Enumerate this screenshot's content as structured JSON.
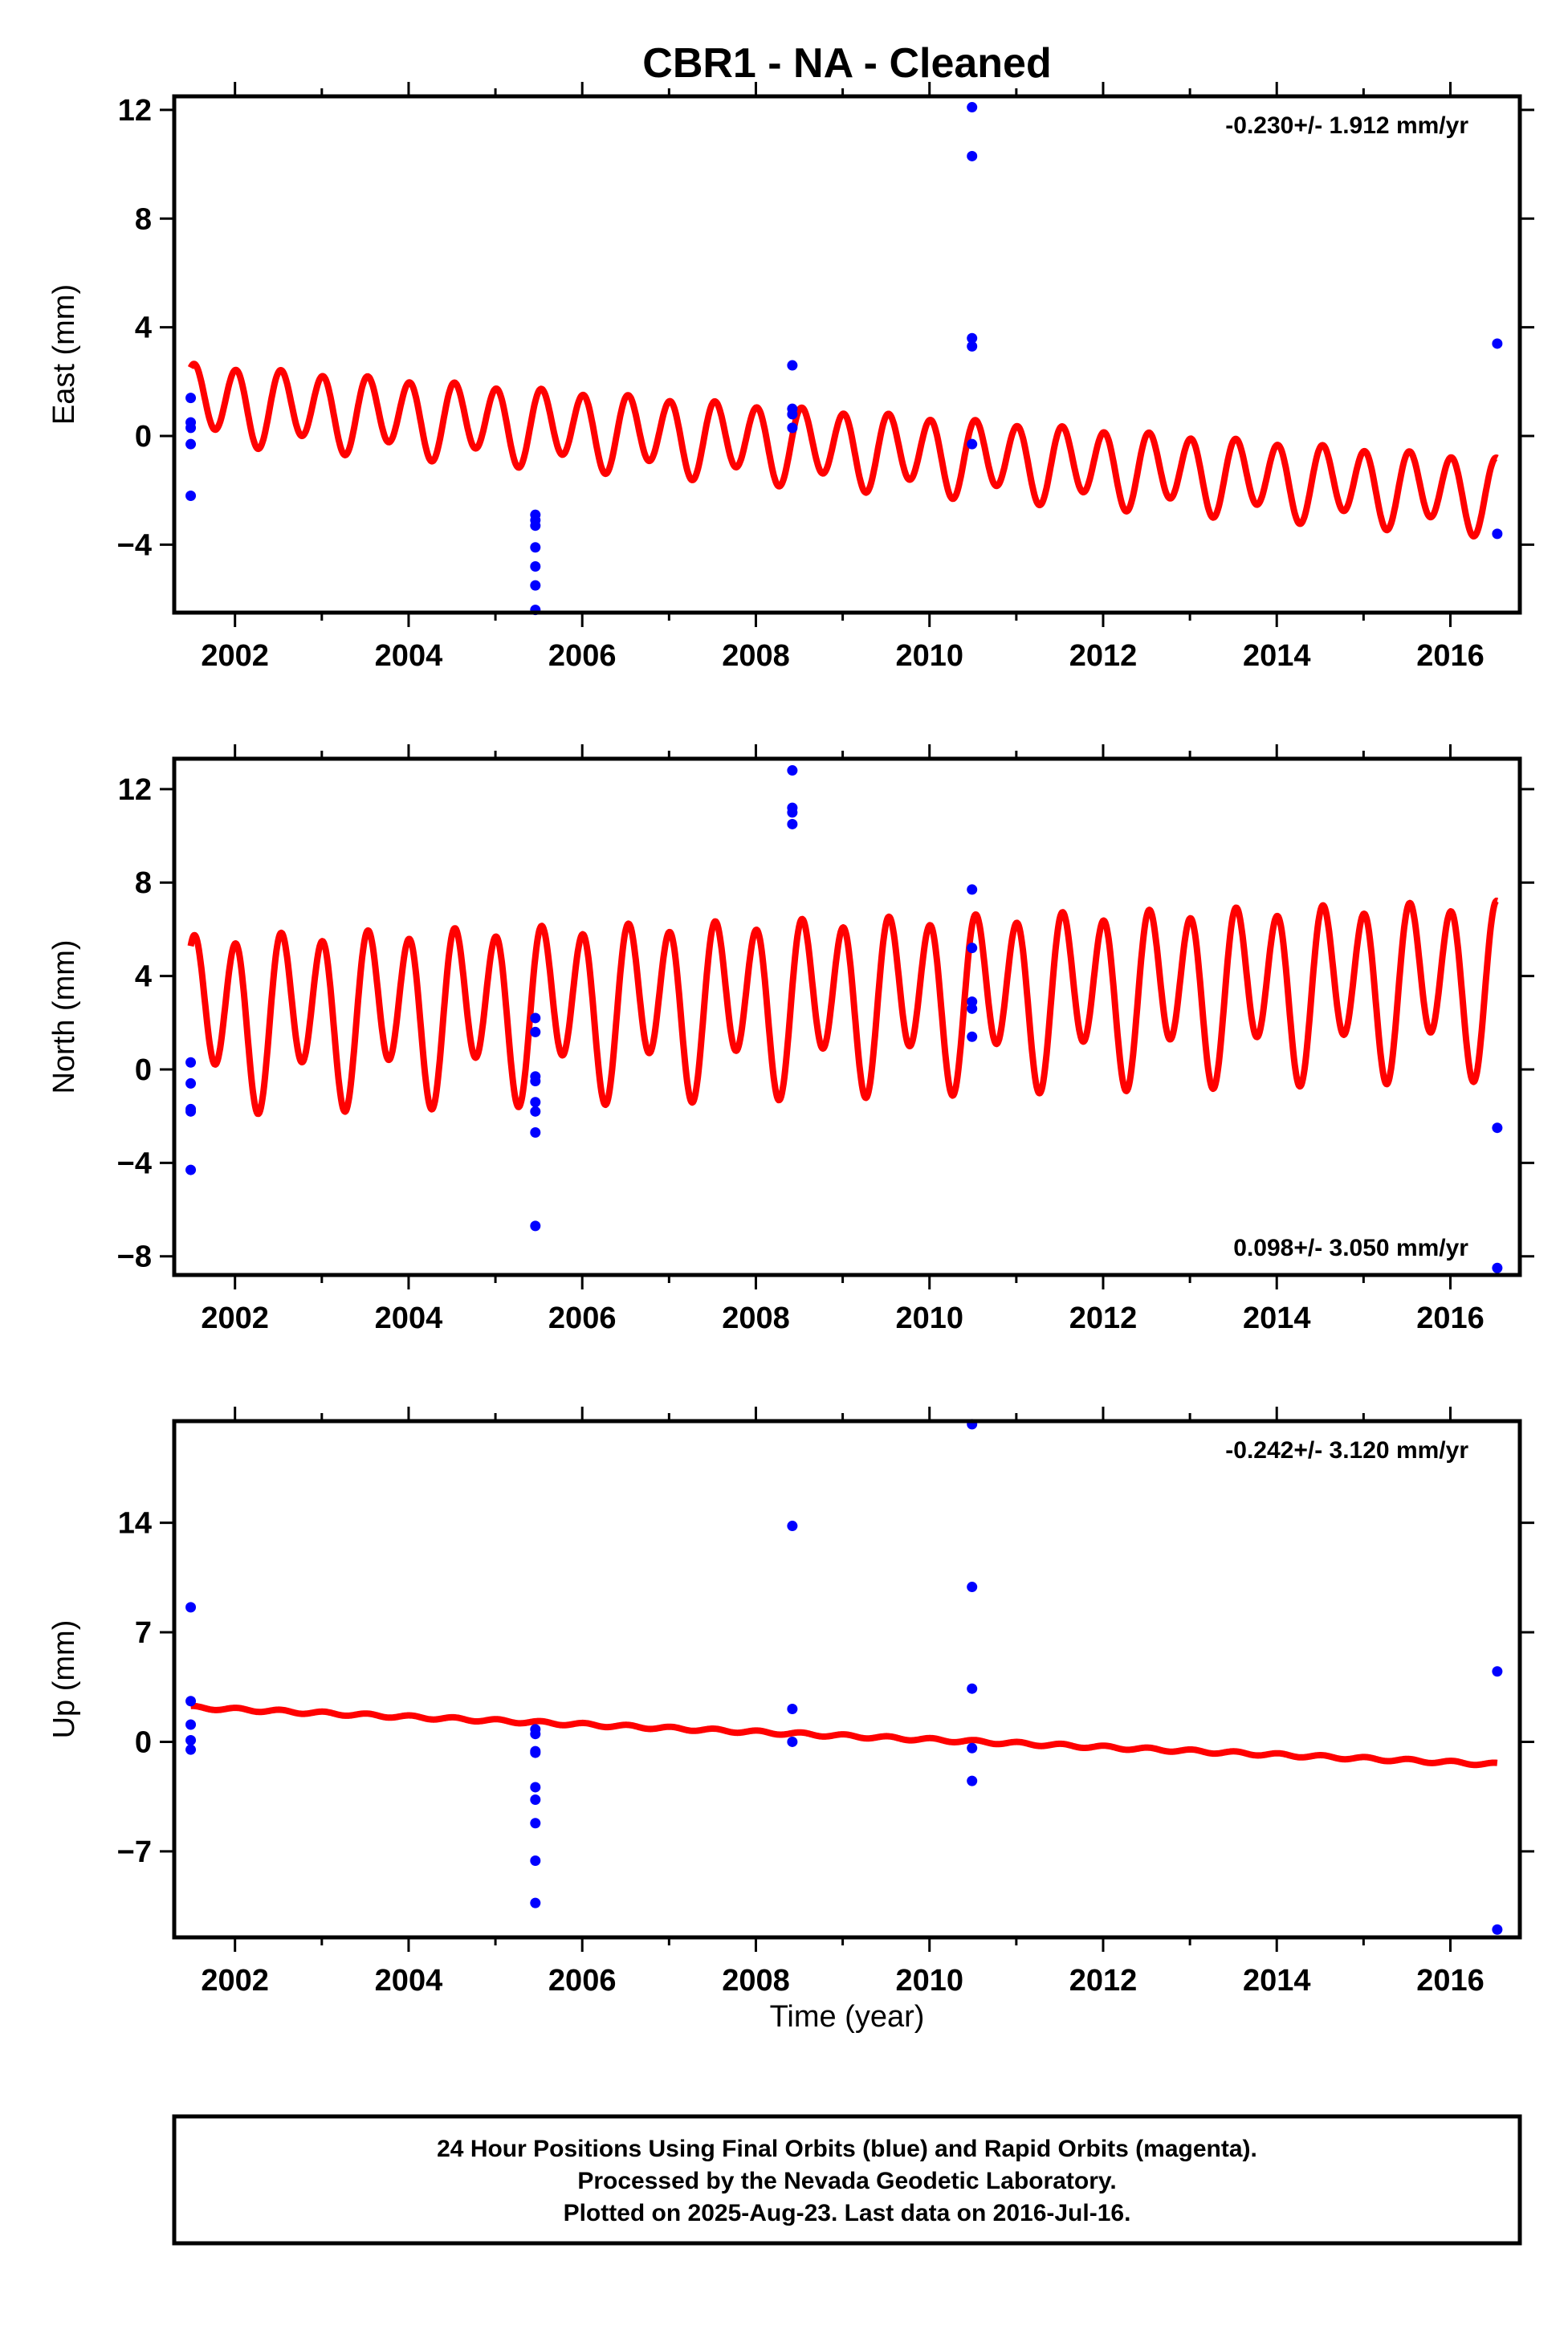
{
  "title": "CBR1  - NA - Cleaned",
  "xlabel": "Time (year)",
  "footer": [
    "24 Hour Positions Using Final Orbits (blue) and Rapid Orbits (magenta).",
    "Processed by the Nevada Geodetic Laboratory.",
    "Plotted on 2025-Aug-23. Last data on 2016-Jul-16."
  ],
  "colors": {
    "points": "#0000ff",
    "model": "#ff0000",
    "axes": "#000000"
  },
  "chart_data": [
    {
      "type": "scatter",
      "ylabel": "East (mm)",
      "rate_text": "-0.230+/- 1.912 mm/yr",
      "rate_position": "top-right",
      "xlim": [
        2001.3,
        2016.8
      ],
      "ylim": [
        -6.5,
        12.5
      ],
      "x_ticks": [
        2002,
        2004,
        2006,
        2008,
        2010,
        2012,
        2014,
        2016
      ],
      "y_ticks": [
        -4,
        0,
        4,
        8,
        12
      ],
      "series": [
        {
          "role": "observations",
          "points": [
            [
              2001.49,
              1.4
            ],
            [
              2001.49,
              0.5
            ],
            [
              2001.49,
              0.3
            ],
            [
              2001.49,
              -0.3
            ],
            [
              2001.49,
              -2.2
            ],
            [
              2005.46,
              -2.9
            ],
            [
              2005.46,
              -3.1
            ],
            [
              2005.46,
              -3.3
            ],
            [
              2005.46,
              -4.1
            ],
            [
              2005.46,
              -4.8
            ],
            [
              2005.46,
              -5.5
            ],
            [
              2005.46,
              -6.4
            ],
            [
              2008.42,
              2.6
            ],
            [
              2008.42,
              1.0
            ],
            [
              2008.42,
              0.8
            ],
            [
              2008.42,
              0.3
            ],
            [
              2010.49,
              12.1
            ],
            [
              2010.49,
              10.3
            ],
            [
              2010.49,
              3.6
            ],
            [
              2010.49,
              3.3
            ],
            [
              2010.49,
              -0.3
            ],
            [
              2016.54,
              3.4
            ],
            [
              2016.54,
              -3.6
            ]
          ]
        },
        {
          "role": "model",
          "x_range": [
            2001.49,
            2016.54
          ],
          "intercept": 1.3,
          "rate": -0.23,
          "annual_amplitude": 0.3,
          "semiannual_amplitude": 1.3,
          "model_type": "linear + seasonal"
        }
      ]
    },
    {
      "type": "scatter",
      "ylabel": "North (mm)",
      "rate_text": "0.098+/- 3.050 mm/yr",
      "rate_position": "bottom-right",
      "xlim": [
        2001.3,
        2016.8
      ],
      "ylim": [
        -8.8,
        13.3
      ],
      "x_ticks": [
        2002,
        2004,
        2006,
        2008,
        2010,
        2012,
        2014,
        2016
      ],
      "y_ticks": [
        -8,
        -4,
        0,
        4,
        8,
        12
      ],
      "series": [
        {
          "role": "observations",
          "points": [
            [
              2001.49,
              0.3
            ],
            [
              2001.49,
              -0.6
            ],
            [
              2001.49,
              -1.7
            ],
            [
              2001.49,
              -1.8
            ],
            [
              2001.49,
              -4.3
            ],
            [
              2005.46,
              2.2
            ],
            [
              2005.46,
              1.6
            ],
            [
              2005.46,
              -0.3
            ],
            [
              2005.46,
              -0.5
            ],
            [
              2005.46,
              -1.4
            ],
            [
              2005.46,
              -1.8
            ],
            [
              2005.46,
              -2.7
            ],
            [
              2005.46,
              -6.7
            ],
            [
              2008.42,
              12.8
            ],
            [
              2008.42,
              11.2
            ],
            [
              2008.42,
              11.0
            ],
            [
              2008.42,
              10.5
            ],
            [
              2010.49,
              7.7
            ],
            [
              2010.49,
              5.2
            ],
            [
              2010.49,
              2.9
            ],
            [
              2010.49,
              2.6
            ],
            [
              2010.49,
              1.4
            ],
            [
              2016.54,
              -2.5
            ],
            [
              2016.54,
              -8.5
            ]
          ]
        },
        {
          "role": "model",
          "x_range": [
            2001.49,
            2016.54
          ],
          "intercept": 2.3,
          "rate": 0.098,
          "annual_amplitude": 1.1,
          "semiannual_amplitude": 3.2,
          "model_type": "linear + seasonal"
        }
      ]
    },
    {
      "type": "scatter",
      "ylabel": "Up (mm)",
      "rate_text": "-0.242+/- 3.120 mm/yr",
      "rate_position": "top-right",
      "xlim": [
        2001.3,
        2016.8
      ],
      "ylim": [
        -12.5,
        20.5
      ],
      "x_ticks": [
        2002,
        2004,
        2006,
        2008,
        2010,
        2012,
        2014,
        2016
      ],
      "y_ticks": [
        -7,
        0,
        7,
        14
      ],
      "series": [
        {
          "role": "observations",
          "points": [
            [
              2001.49,
              8.6
            ],
            [
              2001.49,
              2.6
            ],
            [
              2001.49,
              1.1
            ],
            [
              2001.49,
              0.1
            ],
            [
              2001.49,
              -0.5
            ],
            [
              2005.46,
              0.8
            ],
            [
              2005.46,
              0.5
            ],
            [
              2005.46,
              -0.6
            ],
            [
              2005.46,
              -0.7
            ],
            [
              2005.46,
              -2.9
            ],
            [
              2005.46,
              -3.7
            ],
            [
              2005.46,
              -5.2
            ],
            [
              2005.46,
              -7.6
            ],
            [
              2005.46,
              -10.3
            ],
            [
              2008.42,
              13.8
            ],
            [
              2008.42,
              2.1
            ],
            [
              2008.42,
              0.0
            ],
            [
              2010.49,
              20.3
            ],
            [
              2010.49,
              9.9
            ],
            [
              2010.49,
              3.4
            ],
            [
              2010.49,
              -0.4
            ],
            [
              2010.49,
              -2.5
            ],
            [
              2016.54,
              4.5
            ],
            [
              2016.54,
              -12.0
            ]
          ]
        },
        {
          "role": "model",
          "x_range": [
            2001.49,
            2016.54
          ],
          "intercept": 2.2,
          "rate": -0.242,
          "annual_amplitude": 0.0,
          "semiannual_amplitude": 0.1,
          "model_type": "linear + seasonal"
        }
      ]
    }
  ]
}
